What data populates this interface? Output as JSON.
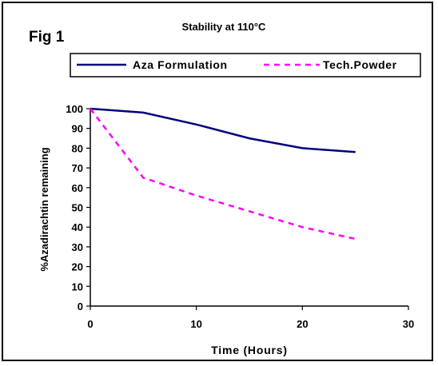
{
  "figure_label": "Fig 1",
  "chart_data": {
    "type": "line",
    "title": "Stability at 110°C",
    "xlabel": "Time (Hours)",
    "ylabel": "%Azadirachtin remaining",
    "xlim": [
      0,
      30
    ],
    "ylim": [
      0,
      100
    ],
    "xticks": [
      0,
      10,
      20,
      30
    ],
    "yticks": [
      0,
      10,
      20,
      30,
      40,
      50,
      60,
      70,
      80,
      90,
      100
    ],
    "grid": false,
    "legend_position": "top",
    "series": [
      {
        "name": "Aza Formulation",
        "color": "#000080",
        "style": "solid",
        "x": [
          0,
          5,
          10,
          15,
          20,
          25
        ],
        "y": [
          100,
          98,
          92,
          85,
          80,
          78
        ]
      },
      {
        "name": "Tech.Powder",
        "color": "#ff00ff",
        "style": "dashed",
        "x": [
          0,
          5,
          10,
          15,
          20,
          25
        ],
        "y": [
          100,
          65,
          56,
          48,
          40,
          34
        ]
      }
    ]
  }
}
